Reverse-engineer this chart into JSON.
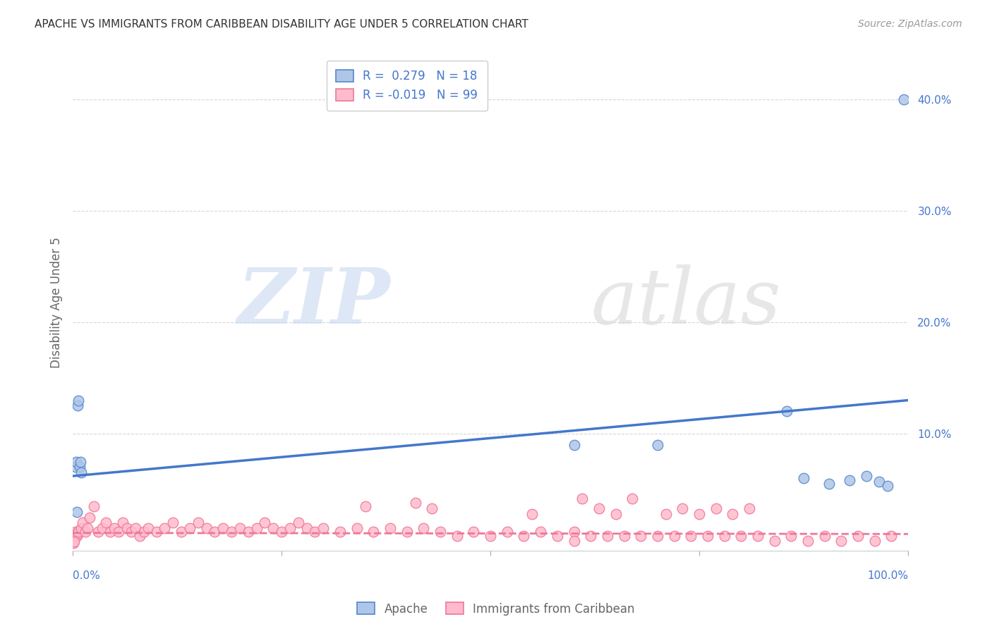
{
  "title": "APACHE VS IMMIGRANTS FROM CARIBBEAN DISABILITY AGE UNDER 5 CORRELATION CHART",
  "source": "Source: ZipAtlas.com",
  "ylabel": "Disability Age Under 5",
  "ytick_labels": [
    "10.0%",
    "20.0%",
    "30.0%",
    "40.0%"
  ],
  "ytick_values": [
    0.1,
    0.2,
    0.3,
    0.4
  ],
  "xlim": [
    0,
    1.0
  ],
  "ylim": [
    -0.005,
    0.44
  ],
  "legend_blue_r": "0.279",
  "legend_blue_n": "18",
  "legend_pink_r": "-0.019",
  "legend_pink_n": "99",
  "legend_label_blue": "Apache",
  "legend_label_pink": "Immigrants from Caribbean",
  "blue_color": "#AEC6E8",
  "pink_color": "#FFBBCC",
  "blue_edge_color": "#5588CC",
  "pink_edge_color": "#EE7799",
  "blue_line_color": "#4477CC",
  "pink_line_color": "#EE7799",
  "background_color": "#FFFFFF",
  "grid_color": "#CCCCCC",
  "title_color": "#333333",
  "axis_label_color": "#4477CC",
  "blue_x": [
    0.003,
    0.004,
    0.005,
    0.006,
    0.007,
    0.008,
    0.009,
    0.01,
    0.6,
    0.7,
    0.855,
    0.875,
    0.905,
    0.93,
    0.95,
    0.965,
    0.975,
    0.995
  ],
  "blue_y": [
    0.07,
    0.075,
    0.03,
    0.125,
    0.13,
    0.07,
    0.075,
    0.065,
    0.09,
    0.09,
    0.12,
    0.06,
    0.055,
    0.058,
    0.062,
    0.057,
    0.053,
    0.4
  ],
  "pink_x": [
    0.0,
    0.001,
    0.002,
    0.003,
    0.004,
    0.005,
    0.006,
    0.007,
    0.01,
    0.012,
    0.015,
    0.018,
    0.02,
    0.025,
    0.03,
    0.035,
    0.04,
    0.045,
    0.05,
    0.055,
    0.06,
    0.065,
    0.07,
    0.075,
    0.08,
    0.085,
    0.09,
    0.1,
    0.11,
    0.12,
    0.13,
    0.14,
    0.15,
    0.16,
    0.17,
    0.18,
    0.19,
    0.2,
    0.21,
    0.22,
    0.23,
    0.24,
    0.25,
    0.26,
    0.27,
    0.28,
    0.29,
    0.3,
    0.32,
    0.34,
    0.35,
    0.36,
    0.38,
    0.4,
    0.41,
    0.42,
    0.43,
    0.44,
    0.46,
    0.48,
    0.5,
    0.52,
    0.54,
    0.55,
    0.56,
    0.58,
    0.6,
    0.61,
    0.62,
    0.63,
    0.64,
    0.65,
    0.66,
    0.67,
    0.68,
    0.7,
    0.71,
    0.72,
    0.73,
    0.74,
    0.75,
    0.76,
    0.77,
    0.78,
    0.79,
    0.8,
    0.81,
    0.82,
    0.84,
    0.86,
    0.88,
    0.9,
    0.92,
    0.94,
    0.96,
    0.98,
    0.6,
    0.001,
    0.002
  ],
  "pink_y": [
    0.005,
    0.008,
    0.01,
    0.012,
    0.01,
    0.008,
    0.01,
    0.012,
    0.015,
    0.02,
    0.012,
    0.015,
    0.025,
    0.035,
    0.012,
    0.015,
    0.02,
    0.012,
    0.015,
    0.012,
    0.02,
    0.015,
    0.012,
    0.015,
    0.008,
    0.012,
    0.015,
    0.012,
    0.015,
    0.02,
    0.012,
    0.015,
    0.02,
    0.015,
    0.012,
    0.015,
    0.012,
    0.015,
    0.012,
    0.015,
    0.02,
    0.015,
    0.012,
    0.015,
    0.02,
    0.015,
    0.012,
    0.015,
    0.012,
    0.015,
    0.035,
    0.012,
    0.015,
    0.012,
    0.038,
    0.015,
    0.033,
    0.012,
    0.008,
    0.012,
    0.008,
    0.012,
    0.008,
    0.028,
    0.012,
    0.008,
    0.012,
    0.042,
    0.008,
    0.033,
    0.008,
    0.028,
    0.008,
    0.042,
    0.008,
    0.008,
    0.028,
    0.008,
    0.033,
    0.008,
    0.028,
    0.008,
    0.033,
    0.008,
    0.028,
    0.008,
    0.033,
    0.008,
    0.004,
    0.008,
    0.004,
    0.008,
    0.004,
    0.008,
    0.004,
    0.008,
    0.004,
    0.002,
    0.003
  ],
  "blue_trend_x": [
    0.0,
    1.0
  ],
  "blue_trend_y": [
    0.062,
    0.13
  ],
  "pink_trend_x": [
    0.0,
    1.0
  ],
  "pink_trend_y": [
    0.011,
    0.01
  ]
}
